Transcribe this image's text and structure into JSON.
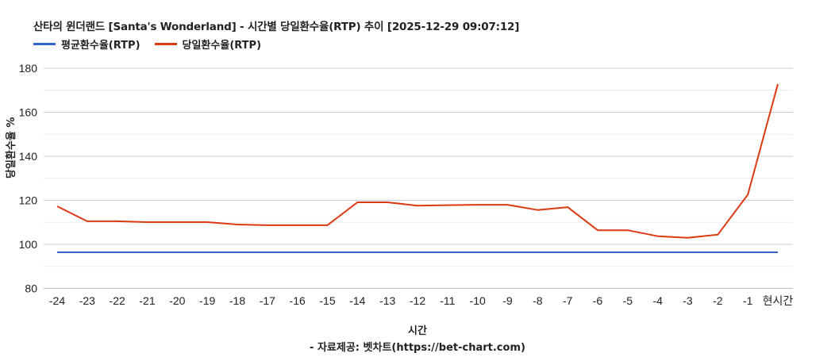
{
  "title": "산타의 윈더랜드 [Santa's Wonderland] - 시간별 당일환수율(RTP) 추이 [2025-12-29 09:07:12]",
  "legend": [
    {
      "label": "평균환수율(RTP)",
      "color": "#3366cc"
    },
    {
      "label": "당일환수율(RTP)",
      "color": "#dc3912"
    }
  ],
  "y_axis_label": "당일환수율 %",
  "x_axis_label": "시간",
  "source": "- 자료제공: 벳차트(https://bet-chart.com)",
  "chart_data": {
    "type": "line",
    "title": "산타의 윈더랜드 [Santa's Wonderland] - 시간별 당일환수율(RTP) 추이 [2025-12-29 09:07:12]",
    "xlabel": "시간",
    "ylabel": "당일환수율 %",
    "categories": [
      "-24",
      "-23",
      "-22",
      "-21",
      "-20",
      "-19",
      "-18",
      "-17",
      "-16",
      "-15",
      "-14",
      "-13",
      "-12",
      "-11",
      "-10",
      "-9",
      "-8",
      "-7",
      "-6",
      "-5",
      "-4",
      "-3",
      "-2",
      "-1",
      "현시간"
    ],
    "series": [
      {
        "name": "평균환수율(RTP)",
        "color": "#3366cc",
        "values": [
          96.4,
          96.4,
          96.4,
          96.4,
          96.4,
          96.4,
          96.4,
          96.4,
          96.4,
          96.4,
          96.4,
          96.4,
          96.4,
          96.4,
          96.4,
          96.4,
          96.4,
          96.4,
          96.4,
          96.4,
          96.4,
          96.4,
          96.4,
          96.4,
          96.4
        ]
      },
      {
        "name": "당일환수율(RTP)",
        "color": "#dc3912",
        "values": [
          117.3,
          110.5,
          110.5,
          110.1,
          110.1,
          110.1,
          109.0,
          108.7,
          108.7,
          108.7,
          119.1,
          119.1,
          117.6,
          117.8,
          118.0,
          118.0,
          115.6,
          116.9,
          106.4,
          106.4,
          103.7,
          103.0,
          104.4,
          122.6,
          172.8
        ]
      }
    ],
    "ylim": [
      80,
      180
    ],
    "yticks": [
      80,
      100,
      120,
      140,
      160,
      180
    ],
    "minor_gridlines": [
      90,
      110,
      130,
      150,
      170
    ],
    "grid": true,
    "legend_position": "top-left"
  }
}
